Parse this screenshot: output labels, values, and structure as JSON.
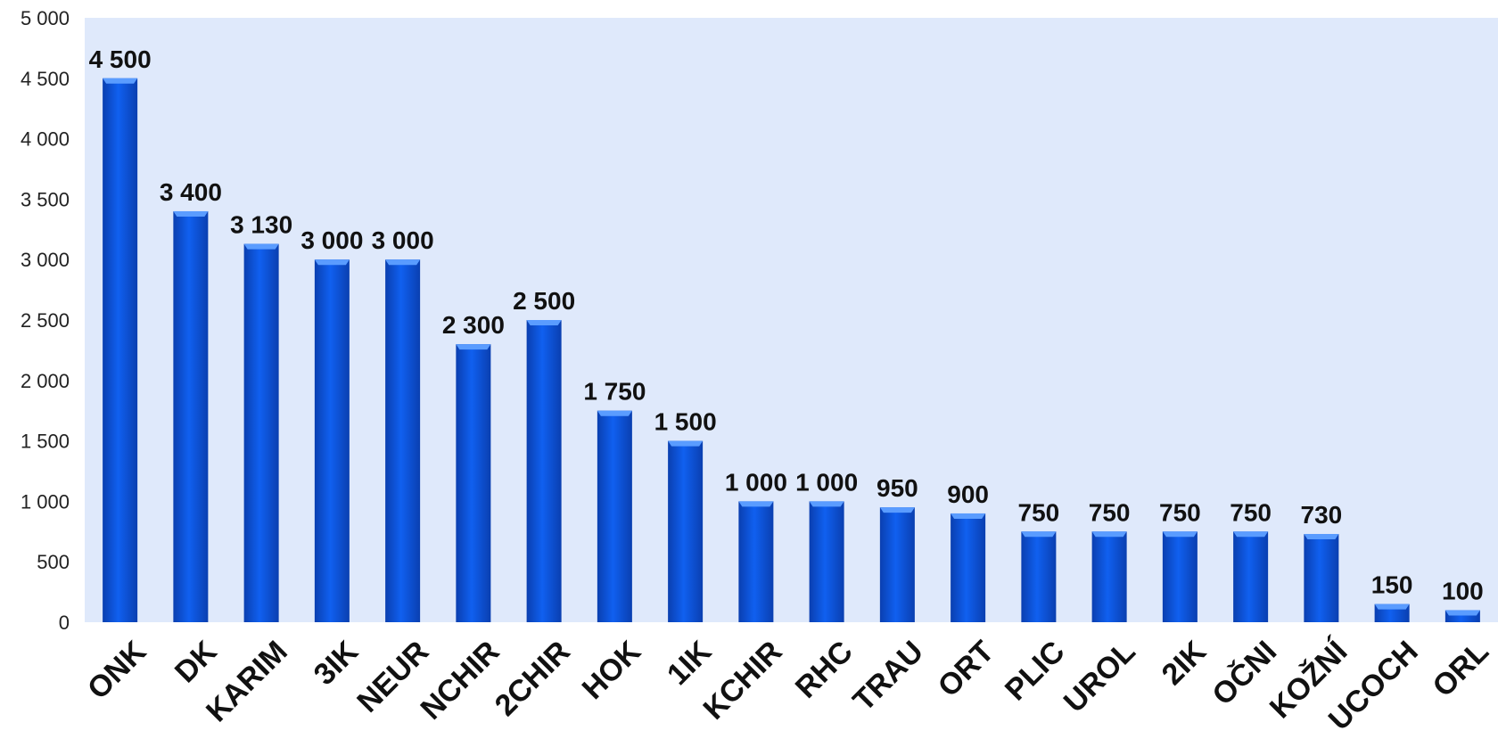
{
  "chart_data": {
    "type": "bar",
    "title": "",
    "xlabel": "",
    "ylabel": "",
    "ylim": [
      0,
      5000
    ],
    "yticks": [
      0,
      500,
      1000,
      1500,
      2000,
      2500,
      3000,
      3500,
      4000,
      4500,
      5000
    ],
    "ytick_labels": [
      "0",
      "500",
      "1 000",
      "1 500",
      "2 000",
      "2 500",
      "3 000",
      "3 500",
      "4 000",
      "4 500",
      "5 000"
    ],
    "grid": false,
    "legend": "none",
    "categories": [
      "ONK",
      "DK",
      "KARIM",
      "3IK",
      "NEUR",
      "NCHIR",
      "2CHIR",
      "HOK",
      "1IK",
      "KCHIR",
      "RHC",
      "TRAU",
      "ORT",
      "PLIC",
      "UROL",
      "2IK",
      "OČNI",
      "KOŽNÍ",
      "UCOCH",
      "ORL"
    ],
    "values": [
      4500,
      3400,
      3130,
      3000,
      3000,
      2300,
      2500,
      1750,
      1500,
      1000,
      1000,
      950,
      900,
      750,
      750,
      750,
      750,
      730,
      150,
      100
    ],
    "value_labels": [
      "4 500",
      "3 400",
      "3 130",
      "3 000",
      "3 000",
      "2 300",
      "2 500",
      "1 750",
      "1 500",
      "1 000",
      "1 000",
      "950",
      "900",
      "750",
      "750",
      "750",
      "750",
      "730",
      "150",
      "100"
    ],
    "colors": {
      "bar": "#1060f0",
      "bar_light": "#5a9cff",
      "bar_dark": "#0a3fb0",
      "plot_background": "#dfe9fb"
    }
  }
}
